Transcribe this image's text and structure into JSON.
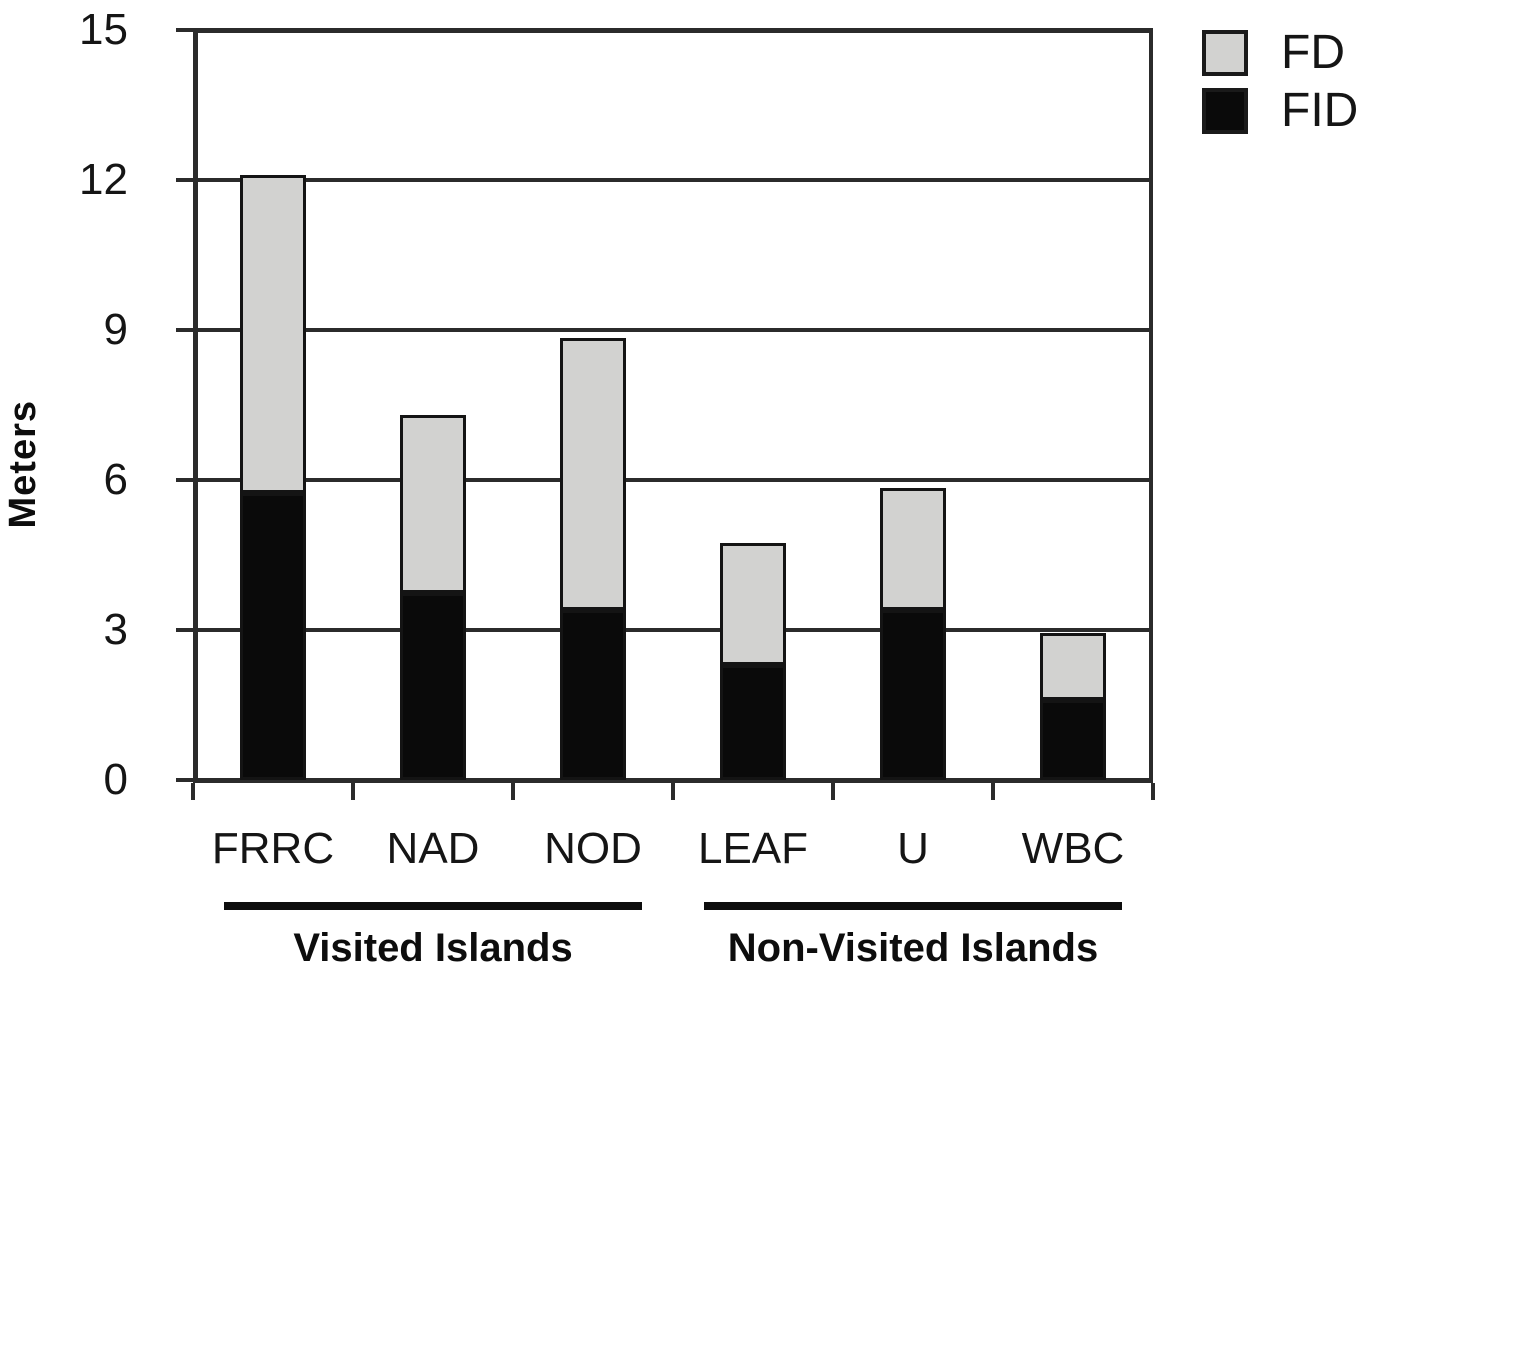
{
  "chart_data": {
    "type": "bar",
    "stacked": true,
    "title": "",
    "ylabel": "Meters",
    "xlabel": "",
    "categories": [
      "FRRC",
      "NAD",
      "NOD",
      "LEAF",
      "U",
      "WBC"
    ],
    "series": [
      {
        "name": "FID",
        "color": "#0a0a0a",
        "values": [
          5.75,
          3.75,
          3.4,
          2.3,
          3.4,
          1.6
        ]
      },
      {
        "name": "FD",
        "color": "#d2d2d0",
        "values": [
          6.35,
          3.55,
          5.45,
          2.45,
          2.45,
          1.35
        ]
      }
    ],
    "ylim": [
      0,
      15
    ],
    "yticks": [
      0,
      3,
      6,
      9,
      12,
      15
    ],
    "grid": true,
    "legend_position": "top-right",
    "legend": [
      {
        "label": "FD",
        "color": "#d2d2d0"
      },
      {
        "label": "FID",
        "color": "#0a0a0a"
      }
    ],
    "groups": [
      {
        "label": "Visited Islands",
        "from": "FRRC",
        "to": "NOD"
      },
      {
        "label": "Non-Visited Islands",
        "from": "LEAF",
        "to": "WBC"
      }
    ]
  }
}
